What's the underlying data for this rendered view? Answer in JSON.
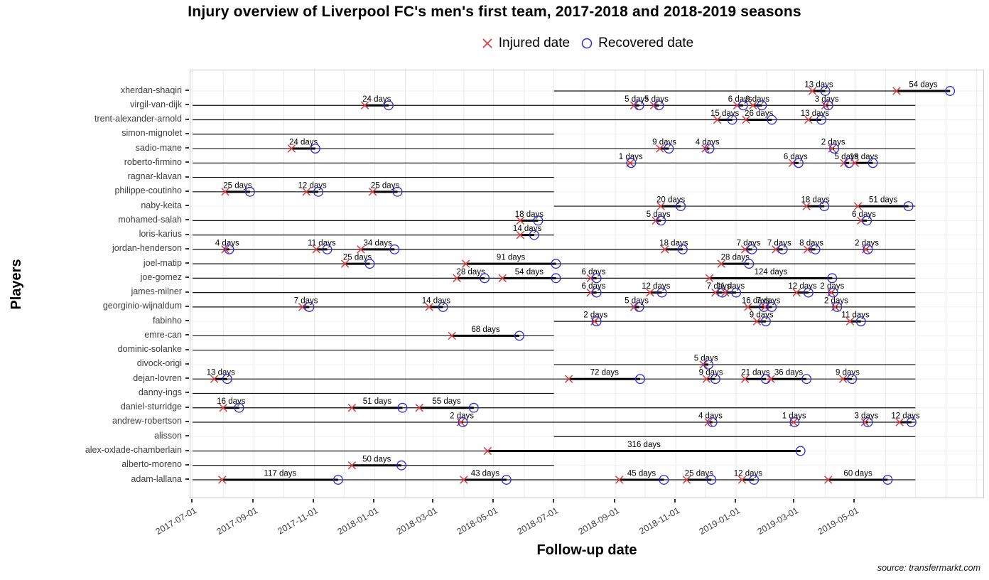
{
  "title": "Injury overview of Liverpool FC's men's first team, 2017-2018 and 2018-2019 seasons",
  "legend": {
    "injured_label": "Injured date",
    "recovered_label": "Recovered date"
  },
  "x_axis": {
    "label": "Follow-up date",
    "ticks": [
      "2017-07-01",
      "2017-09-01",
      "2017-11-01",
      "2018-01-01",
      "2018-03-01",
      "2018-05-01",
      "2018-07-01",
      "2018-09-01",
      "2018-11-01",
      "2019-01-01",
      "2019-03-01",
      "2019-05-01"
    ]
  },
  "y_axis": {
    "label": "Players"
  },
  "source": "source: transfermarkt.com",
  "colors": {
    "injured_marker": "#e23b3b",
    "recovered_marker": "#2b2bd6",
    "followup_line": "#111111",
    "injury_bar": "#000000",
    "axis_text": "#3d3d3d",
    "grid_vertical": "#e8e8e8",
    "grid_horizontal": "#f0f0f0"
  },
  "chart_data": {
    "type": "gantt",
    "title": "Injury overview of Liverpool FC's men's first team, 2017-2018 and 2018-2019 seasons",
    "xlabel": "Follow-up date",
    "ylabel": "Players",
    "x_domain": [
      "2017-07-01",
      "2019-09-08"
    ],
    "legend_position": "top",
    "grid": true,
    "players": [
      {
        "name": "xherdan-shaqiri",
        "followup": [
          "2018-07-01",
          "2019-08-05"
        ],
        "injuries": [
          {
            "injured": "2019-03-19",
            "days": 13,
            "label": "13 days"
          },
          {
            "injured": "2019-06-12",
            "days": 54,
            "label": "54 days"
          }
        ]
      },
      {
        "name": "virgil-van-dijk",
        "followup": [
          "2017-07-01",
          "2019-07-01"
        ],
        "injuries": [
          {
            "injured": "2017-12-22",
            "days": 24,
            "label": "24 days"
          },
          {
            "injured": "2018-09-20",
            "days": 5,
            "label": "5 days"
          },
          {
            "injured": "2018-10-10",
            "days": 5,
            "label": "5 days"
          },
          {
            "injured": "2019-01-02",
            "days": 6,
            "label": "6 days"
          },
          {
            "injured": "2019-01-18",
            "days": 9,
            "label": "9 days"
          },
          {
            "injured": "2019-04-01",
            "days": 3,
            "label": "3 days"
          }
        ]
      },
      {
        "name": "trent-alexander-arnold",
        "followup": [
          "2017-07-01",
          "2019-07-01"
        ],
        "injuries": [
          {
            "injured": "2018-12-13",
            "days": 15,
            "label": "15 days"
          },
          {
            "injured": "2019-01-11",
            "days": 26,
            "label": "26 days"
          },
          {
            "injured": "2019-03-15",
            "days": 13,
            "label": "13 days"
          }
        ]
      },
      {
        "name": "simon-mignolet",
        "followup": [
          "2017-07-01",
          "2018-07-01"
        ],
        "injuries": []
      },
      {
        "name": "sadio-mane",
        "followup": [
          "2017-07-01",
          "2019-07-01"
        ],
        "injuries": [
          {
            "injured": "2017-10-09",
            "days": 24,
            "label": "24 days"
          },
          {
            "injured": "2018-10-16",
            "days": 9,
            "label": "9 days"
          },
          {
            "injured": "2018-12-01",
            "days": 4,
            "label": "4 days"
          },
          {
            "injured": "2019-04-08",
            "days": 2,
            "label": "2 days"
          }
        ]
      },
      {
        "name": "roberto-firmino",
        "followup": [
          "2017-07-01",
          "2019-07-01"
        ],
        "injuries": [
          {
            "injured": "2018-09-16",
            "days": 1,
            "label": "1 days"
          },
          {
            "injured": "2019-02-27",
            "days": 6,
            "label": "6 days"
          },
          {
            "injured": "2019-04-20",
            "days": 5,
            "label": "5 days"
          },
          {
            "injured": "2019-05-01",
            "days": 18,
            "label": "18 days"
          }
        ]
      },
      {
        "name": "ragnar-klavan",
        "followup": [
          "2017-07-01",
          "2018-07-01"
        ],
        "injuries": []
      },
      {
        "name": "philippe-coutinho",
        "followup": [
          "2017-07-01",
          "2018-07-01"
        ],
        "injuries": [
          {
            "injured": "2017-08-03",
            "days": 25,
            "label": "25 days"
          },
          {
            "injured": "2017-10-24",
            "days": 12,
            "label": "12 days"
          },
          {
            "injured": "2017-12-30",
            "days": 25,
            "label": "25 days"
          }
        ]
      },
      {
        "name": "naby-keita",
        "followup": [
          "2018-07-01",
          "2019-07-01"
        ],
        "injuries": [
          {
            "injured": "2018-10-17",
            "days": 20,
            "label": "20 days"
          },
          {
            "injured": "2019-03-13",
            "days": 18,
            "label": "18 days"
          },
          {
            "injured": "2019-05-04",
            "days": 51,
            "label": "51 days"
          }
        ]
      },
      {
        "name": "mohamed-salah",
        "followup": [
          "2017-07-01",
          "2019-07-01"
        ],
        "injuries": [
          {
            "injured": "2018-05-28",
            "days": 18,
            "label": "18 days"
          },
          {
            "injured": "2018-10-12",
            "days": 5,
            "label": "5 days"
          },
          {
            "injured": "2019-05-07",
            "days": 6,
            "label": "6 days"
          }
        ]
      },
      {
        "name": "loris-karius",
        "followup": [
          "2017-07-01",
          "2018-07-01"
        ],
        "injuries": [
          {
            "injured": "2018-05-28",
            "days": 14,
            "label": "14 days"
          }
        ]
      },
      {
        "name": "jordan-henderson",
        "followup": [
          "2017-07-01",
          "2019-07-01"
        ],
        "injuries": [
          {
            "injured": "2017-08-03",
            "days": 4,
            "label": "4 days"
          },
          {
            "injured": "2017-11-03",
            "days": 11,
            "label": "11 days"
          },
          {
            "injured": "2017-12-18",
            "days": 34,
            "label": "34 days"
          },
          {
            "injured": "2018-10-21",
            "days": 18,
            "label": "18 days"
          },
          {
            "injured": "2019-01-10",
            "days": 7,
            "label": "7 days"
          },
          {
            "injured": "2019-02-10",
            "days": 7,
            "label": "7 days"
          },
          {
            "injured": "2019-03-14",
            "days": 8,
            "label": "8 days"
          },
          {
            "injured": "2019-05-12",
            "days": 2,
            "label": "2 days"
          }
        ]
      },
      {
        "name": "joel-matip",
        "followup": [
          "2017-07-01",
          "2019-07-01"
        ],
        "injuries": [
          {
            "injured": "2017-12-02",
            "days": 25,
            "label": "25 days"
          },
          {
            "injured": "2018-04-03",
            "days": 91,
            "label": "91 days"
          },
          {
            "injured": "2018-12-17",
            "days": 28,
            "label": "28 days"
          }
        ]
      },
      {
        "name": "joe-gomez",
        "followup": [
          "2017-07-01",
          "2019-07-01"
        ],
        "injuries": [
          {
            "injured": "2018-03-25",
            "days": 28,
            "label": "28 days"
          },
          {
            "injured": "2018-05-10",
            "days": 54,
            "label": "54 days"
          },
          {
            "injured": "2018-08-07",
            "days": 6,
            "label": "6 days"
          },
          {
            "injured": "2018-12-05",
            "days": 124,
            "label": "124 days"
          }
        ]
      },
      {
        "name": "james-milner",
        "followup": [
          "2017-07-01",
          "2019-07-01"
        ],
        "injuries": [
          {
            "injured": "2018-08-07",
            "days": 6,
            "label": "6 days"
          },
          {
            "injured": "2018-10-06",
            "days": 12,
            "label": "12 days"
          },
          {
            "injured": "2018-12-11",
            "days": 7,
            "label": "7 days"
          },
          {
            "injured": "2018-12-21",
            "days": 11,
            "label": "11 days"
          },
          {
            "injured": "2019-03-03",
            "days": 12,
            "label": "12 days"
          },
          {
            "injured": "2019-04-07",
            "days": 2,
            "label": "2 days"
          }
        ]
      },
      {
        "name": "georginio-wijnaldum",
        "followup": [
          "2017-07-01",
          "2019-07-01"
        ],
        "injuries": [
          {
            "injured": "2017-10-20",
            "days": 7,
            "label": "7 days"
          },
          {
            "injured": "2018-02-25",
            "days": 14,
            "label": "14 days"
          },
          {
            "injured": "2018-09-20",
            "days": 5,
            "label": "5 days"
          },
          {
            "injured": "2019-01-13",
            "days": 16,
            "label": "16 days"
          },
          {
            "injured": "2019-01-30",
            "days": 7,
            "label": "7 days"
          },
          {
            "injured": "2019-04-11",
            "days": 2,
            "label": "2 days"
          }
        ]
      },
      {
        "name": "fabinho",
        "followup": [
          "2018-07-01",
          "2019-07-01"
        ],
        "injuries": [
          {
            "injured": "2018-08-11",
            "days": 2,
            "label": "2 days"
          },
          {
            "injured": "2019-01-22",
            "days": 9,
            "label": "9 days"
          },
          {
            "injured": "2019-04-26",
            "days": 11,
            "label": "11 days"
          }
        ]
      },
      {
        "name": "emre-can",
        "followup": [
          "2017-07-01",
          "2018-07-01"
        ],
        "injuries": [
          {
            "injured": "2018-03-20",
            "days": 68,
            "label": "68 days"
          }
        ]
      },
      {
        "name": "dominic-solanke",
        "followup": [
          "2017-07-01",
          "2018-07-01"
        ],
        "injuries": []
      },
      {
        "name": "divock-origi",
        "followup": [
          "2018-07-01",
          "2019-07-01"
        ],
        "injuries": [
          {
            "injured": "2018-11-29",
            "days": 5,
            "label": "5 days"
          }
        ]
      },
      {
        "name": "dejan-lovren",
        "followup": [
          "2017-07-01",
          "2019-07-01"
        ],
        "injuries": [
          {
            "injured": "2017-07-23",
            "days": 13,
            "label": "13 days"
          },
          {
            "injured": "2018-07-16",
            "days": 72,
            "label": "72 days"
          },
          {
            "injured": "2018-12-02",
            "days": 9,
            "label": "9 days"
          },
          {
            "injured": "2019-01-10",
            "days": 21,
            "label": "21 days"
          },
          {
            "injured": "2019-02-05",
            "days": 36,
            "label": "36 days"
          },
          {
            "injured": "2019-04-19",
            "days": 9,
            "label": "9 days"
          }
        ]
      },
      {
        "name": "danny-ings",
        "followup": [
          "2017-07-01",
          "2018-07-01"
        ],
        "injuries": []
      },
      {
        "name": "daniel-sturridge",
        "followup": [
          "2017-07-01",
          "2019-07-01"
        ],
        "injuries": [
          {
            "injured": "2017-08-01",
            "days": 16,
            "label": "16 days"
          },
          {
            "injured": "2017-12-09",
            "days": 51,
            "label": "51 days"
          },
          {
            "injured": "2018-02-15",
            "days": 55,
            "label": "55 days"
          }
        ]
      },
      {
        "name": "andrew-robertson",
        "followup": [
          "2017-07-01",
          "2019-07-01"
        ],
        "injuries": [
          {
            "injured": "2018-03-29",
            "days": 2,
            "label": "2 days"
          },
          {
            "injured": "2018-12-04",
            "days": 4,
            "label": "4 days"
          },
          {
            "injured": "2019-02-28",
            "days": 1,
            "label": "1 days"
          },
          {
            "injured": "2019-05-11",
            "days": 3,
            "label": "3 days"
          },
          {
            "injured": "2019-06-15",
            "days": 12,
            "label": "12 days"
          }
        ]
      },
      {
        "name": "alisson",
        "followup": [
          "2018-07-01",
          "2019-07-01"
        ],
        "injuries": []
      },
      {
        "name": "alex-oxlade-chamberlain",
        "followup": [
          "2017-07-01",
          "2019-03-07"
        ],
        "injuries": [
          {
            "injured": "2018-04-25",
            "days": 316,
            "label": "316 days"
          }
        ]
      },
      {
        "name": "alberto-moreno",
        "followup": [
          "2017-07-01",
          "2018-07-01"
        ],
        "injuries": [
          {
            "injured": "2017-12-09",
            "days": 50,
            "label": "50 days"
          }
        ]
      },
      {
        "name": "adam-lallana",
        "followup": [
          "2017-07-01",
          "2019-07-01"
        ],
        "injuries": [
          {
            "injured": "2017-07-31",
            "days": 117,
            "label": "117 days"
          },
          {
            "injured": "2018-04-01",
            "days": 43,
            "label": "43 days"
          },
          {
            "injured": "2018-09-05",
            "days": 45,
            "label": "45 days"
          },
          {
            "injured": "2018-11-12",
            "days": 25,
            "label": "25 days"
          },
          {
            "injured": "2019-01-07",
            "days": 12,
            "label": "12 days"
          },
          {
            "injured": "2019-04-04",
            "days": 60,
            "label": "60 days"
          }
        ]
      }
    ]
  }
}
